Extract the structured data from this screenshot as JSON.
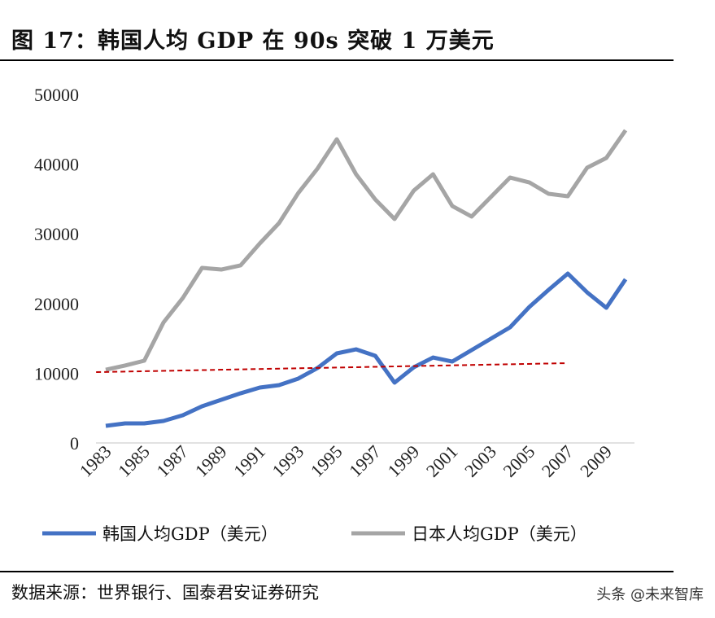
{
  "title": "图 17：韩国人均 GDP 在 90s 突破 1 万美元",
  "source": "数据来源：世界银行、国泰君安证券研究",
  "watermark": "头条 @未来智库",
  "chart_data": {
    "type": "line",
    "ylim": [
      0,
      50000
    ],
    "yticks": [
      0,
      10000,
      20000,
      30000,
      40000,
      50000
    ],
    "xtick_labels": [
      "1983",
      "1985",
      "1987",
      "1989",
      "1991",
      "1993",
      "1995",
      "1997",
      "1999",
      "2001",
      "2003",
      "2005",
      "2007",
      "2009"
    ],
    "x": [
      1983,
      1984,
      1985,
      1986,
      1987,
      1988,
      1989,
      1990,
      1991,
      1992,
      1993,
      1994,
      1995,
      1996,
      1997,
      1998,
      1999,
      2000,
      2001,
      2002,
      2003,
      2004,
      2005,
      2006,
      2007,
      2008,
      2009,
      2010
    ],
    "legend_position": "bottom",
    "series": [
      {
        "name": "韩国人均GDP（美元）",
        "color": "#4472C4",
        "values": [
          2450,
          2800,
          2800,
          3150,
          3970,
          5260,
          6190,
          7120,
          7940,
          8290,
          9230,
          10750,
          12850,
          13430,
          12500,
          8650,
          10860,
          12260,
          11680,
          13320,
          14950,
          16590,
          19510,
          21960,
          24300,
          21610,
          19390,
          23480
        ]
      },
      {
        "name": "日本人均GDP（美元）",
        "color": "#A5A5A5",
        "values": [
          10510,
          11100,
          11800,
          17290,
          20790,
          25120,
          24880,
          25470,
          28620,
          31540,
          35860,
          39370,
          43570,
          38550,
          34930,
          32130,
          36210,
          38550,
          33990,
          32480,
          35280,
          38080,
          37380,
          35750,
          35400,
          39490,
          40890,
          44860
        ]
      }
    ],
    "trendline": {
      "color": "#C00000",
      "style": "dashed",
      "x": [
        1982.5,
        2007
      ],
      "y": [
        10160,
        11450
      ]
    }
  }
}
